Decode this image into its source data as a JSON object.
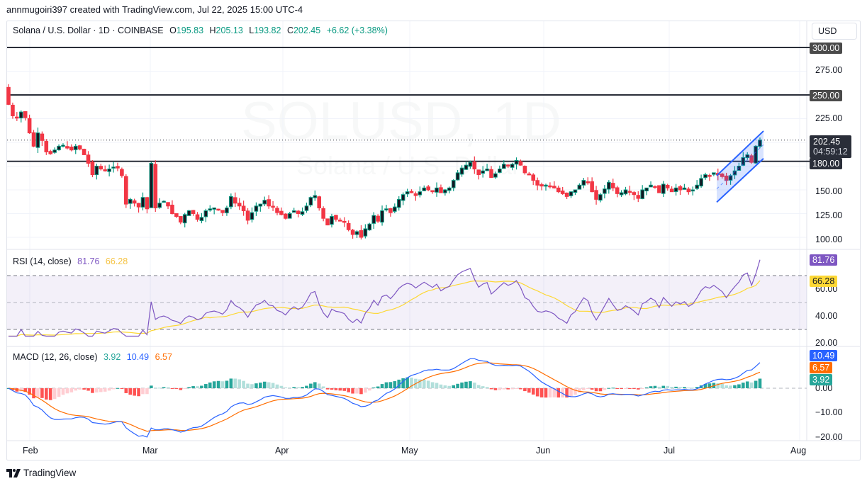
{
  "attribution": "annmugoiri397 created with TradingView.com, Jul 22, 2025 15:00 UTC-4",
  "header": {
    "symbol_title": "Solana / U.S. Dollar · 1D · COINBASE",
    "open_label": "O",
    "open": "195.83",
    "high_label": "H",
    "high": "205.13",
    "low_label": "L",
    "low": "193.82",
    "close_label": "C",
    "close": "202.45",
    "change": "+6.62 (+3.38%)"
  },
  "currency_button": "USD",
  "watermark": {
    "line1": "SOLUSD, 1D",
    "line2": "Solana / U.S. Dollar"
  },
  "price_axis": {
    "ticks": [
      "275.00",
      "225.00",
      "150.00",
      "125.00",
      "100.00"
    ],
    "horizontal_levels": [
      "300.00",
      "250.00",
      "180.00"
    ],
    "last_price": "202.45",
    "countdown": "04:59:12"
  },
  "rsi": {
    "title": "RSI (14, close)",
    "value": "81.76",
    "ma_value": "66.28",
    "ticks": [
      "60.00",
      "40.00",
      "20.00"
    ]
  },
  "macd": {
    "title": "MACD (12, 26, close)",
    "histogram": "3.92",
    "macd": "10.49",
    "signal": "6.57",
    "ticks": [
      "0.00",
      "−10.00",
      "−20.00"
    ]
  },
  "time_axis": [
    "Feb",
    "Mar",
    "Apr",
    "May",
    "Jun",
    "Jul",
    "Aug"
  ],
  "footer": {
    "brand": "TradingView"
  },
  "colors": {
    "up": "#089981",
    "down": "#f23645",
    "up_body": "#131722",
    "rsi": "#7e57c2",
    "rsi_ma": "#fdd835",
    "macd": "#2962ff",
    "signal": "#ff6d00",
    "hist_up_strong": "#26a69a",
    "hist_up_weak": "#b2dfdb",
    "hist_down_strong": "#ff5252",
    "hist_down_weak": "#ffcdd2",
    "channel": "#2962ff"
  },
  "chart_data": [
    {
      "type": "candlestick",
      "title": "Solana / U.S. Dollar · 1D · COINBASE",
      "ylabel": "USD",
      "ylim": [
        90,
        310
      ],
      "x_ticks": [
        "Feb",
        "Mar",
        "Apr",
        "May",
        "Jun",
        "Jul",
        "Aug"
      ],
      "y_ticks": [
        100,
        125,
        150,
        175,
        200,
        225,
        250,
        275,
        300
      ],
      "horizontal_lines": [
        300,
        250,
        180
      ],
      "last_price": 202.45,
      "last_ohlc": {
        "open": 195.83,
        "high": 205.13,
        "low": 193.82,
        "close": 202.45,
        "change": 6.62,
        "change_pct": 3.38
      },
      "ascending_channel": {
        "from": "Jul 10",
        "to": "Jul 22",
        "upper": [
          165,
          212
        ],
        "lower": [
          137,
          183
        ]
      },
      "closes": [
        240,
        228,
        226,
        232,
        226,
        210,
        196,
        210,
        202,
        190,
        188,
        192,
        196,
        197,
        194,
        192,
        196,
        193,
        187,
        178,
        166,
        175,
        172,
        170,
        172,
        174,
        173,
        165,
        135,
        140,
        136,
        132,
        142,
        130,
        178,
        131,
        136,
        138,
        133,
        125,
        122,
        116,
        124,
        128,
        125,
        119,
        121,
        128,
        130,
        131,
        129,
        126,
        131,
        143,
        136,
        133,
        128,
        118,
        126,
        133,
        135,
        139,
        133,
        132,
        126,
        124,
        120,
        125,
        128,
        125,
        127,
        133,
        142,
        144,
        131,
        120,
        113,
        122,
        119,
        118,
        116,
        108,
        103,
        106,
        100,
        109,
        114,
        123,
        117,
        128,
        130,
        126,
        132,
        140,
        145,
        148,
        147,
        144,
        148,
        152,
        150,
        148,
        152,
        147,
        150,
        152,
        160,
        168,
        173,
        176,
        179,
        172,
        166,
        170,
        172,
        163,
        167,
        172,
        177,
        175,
        177,
        181,
        176,
        168,
        166,
        160,
        155,
        154,
        155,
        154,
        152,
        148,
        146,
        143,
        148,
        150,
        155,
        160,
        158,
        148,
        140,
        145,
        151,
        158,
        152,
        146,
        147,
        150,
        148,
        145,
        141,
        150,
        152,
        155,
        153,
        147,
        156,
        152,
        148,
        152,
        150,
        152,
        148,
        150,
        155,
        162,
        166,
        165,
        168,
        166,
        164,
        160,
        165,
        170,
        175,
        184,
        187,
        179,
        196,
        202.45
      ],
      "grid": true
    },
    {
      "type": "line",
      "title": "RSI (14, close)",
      "ylim": [
        15,
        90
      ],
      "y_ticks": [
        20,
        40,
        60
      ],
      "bands": {
        "upper": 70,
        "middle": 50,
        "lower": 30
      },
      "series": [
        {
          "name": "RSI",
          "last": 81.76
        },
        {
          "name": "RSI-based MA",
          "last": 66.28
        }
      ]
    },
    {
      "type": "line+bar",
      "title": "MACD (12, 26, close)",
      "ylim": [
        -22,
        14
      ],
      "y_ticks": [
        -20,
        -10,
        0
      ],
      "series": [
        {
          "name": "Histogram",
          "last": 3.92
        },
        {
          "name": "MACD",
          "last": 10.49
        },
        {
          "name": "Signal",
          "last": 6.57
        }
      ]
    }
  ]
}
